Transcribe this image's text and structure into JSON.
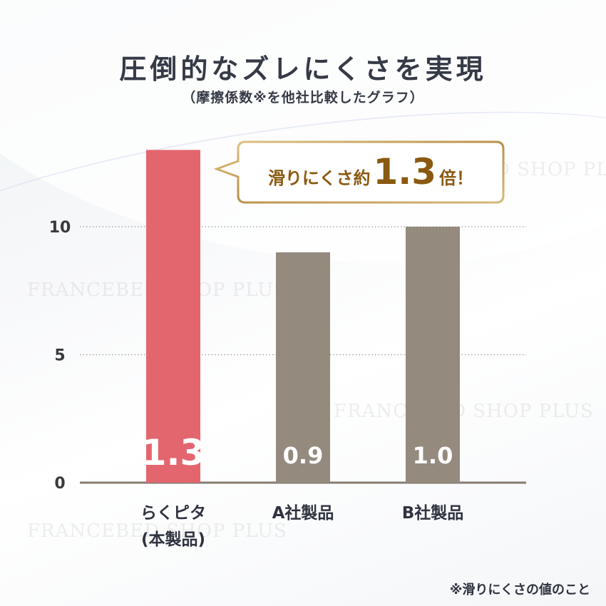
{
  "header": {
    "title": "圧倒的なズレにくさを実現",
    "subtitle": "（摩擦係数※を他社比較したグラフ）"
  },
  "callout": {
    "prefix": "滑りにくさ約",
    "value": "1.3",
    "suffix": "倍！"
  },
  "watermark": "FRANCEBED SHOP PLUS",
  "footnote": "※滑りにくさの値のこと",
  "colors": {
    "highlight_bar": "#e3666f",
    "other_bar": "#948a7e",
    "baseline": "#857c71",
    "gold": "#c8a35e",
    "callout_text": "#8a5a10"
  },
  "chart_data": {
    "type": "bar",
    "categories": [
      "らくピタ\n(本製品)",
      "A社製品",
      "B社製品"
    ],
    "values": [
      1.3,
      0.9,
      1.0
    ],
    "bar_scale_values": [
      13,
      9,
      10
    ],
    "data_labels": [
      "1.3",
      "0.9",
      "1.0"
    ],
    "yticks": [
      0,
      5,
      10
    ],
    "ylim": [
      0,
      10
    ],
    "grid": "dotted horizontal at 5 and 10",
    "highlight_index": 0,
    "legend": "none"
  }
}
